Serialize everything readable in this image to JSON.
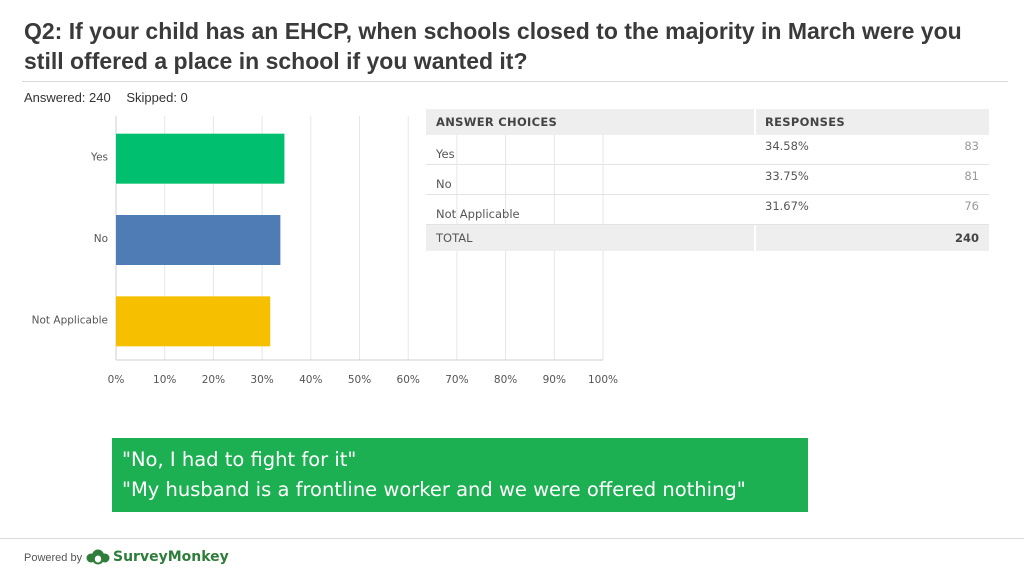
{
  "title": "Q2: If your child has an EHCP, when schools closed to the majority in March were you still offered a place in school if you wanted it?",
  "answered": "Answered: 240",
  "skipped": "Skipped: 0",
  "chart_data": {
    "type": "bar",
    "orientation": "horizontal",
    "categories": [
      "Yes",
      "No",
      "Not Applicable"
    ],
    "values": [
      34.58,
      33.75,
      31.67
    ],
    "colors": [
      "#00bf6f",
      "#507cb6",
      "#f6c000"
    ],
    "xlim": [
      0,
      100
    ],
    "xticks": [
      "0%",
      "10%",
      "20%",
      "30%",
      "40%",
      "50%",
      "60%",
      "70%",
      "80%",
      "90%",
      "100%"
    ],
    "grid": true
  },
  "table": {
    "header": {
      "choices": "ANSWER CHOICES",
      "responses": "RESPONSES"
    },
    "rows": [
      {
        "choice": "Yes",
        "percent": "34.58%",
        "count": "83"
      },
      {
        "choice": "No",
        "percent": "33.75%",
        "count": "81"
      },
      {
        "choice": "Not Applicable",
        "percent": "31.67%",
        "count": "76"
      }
    ],
    "total": {
      "label": "TOTAL",
      "count": "240"
    }
  },
  "quotes": [
    "\"No, I had to fight for it\"",
    "\"My husband is a frontline worker and we were offered nothing\""
  ],
  "footer": {
    "powered_by": "Powered by",
    "brand": "SurveyMonkey",
    "brand_suffix": "·"
  }
}
